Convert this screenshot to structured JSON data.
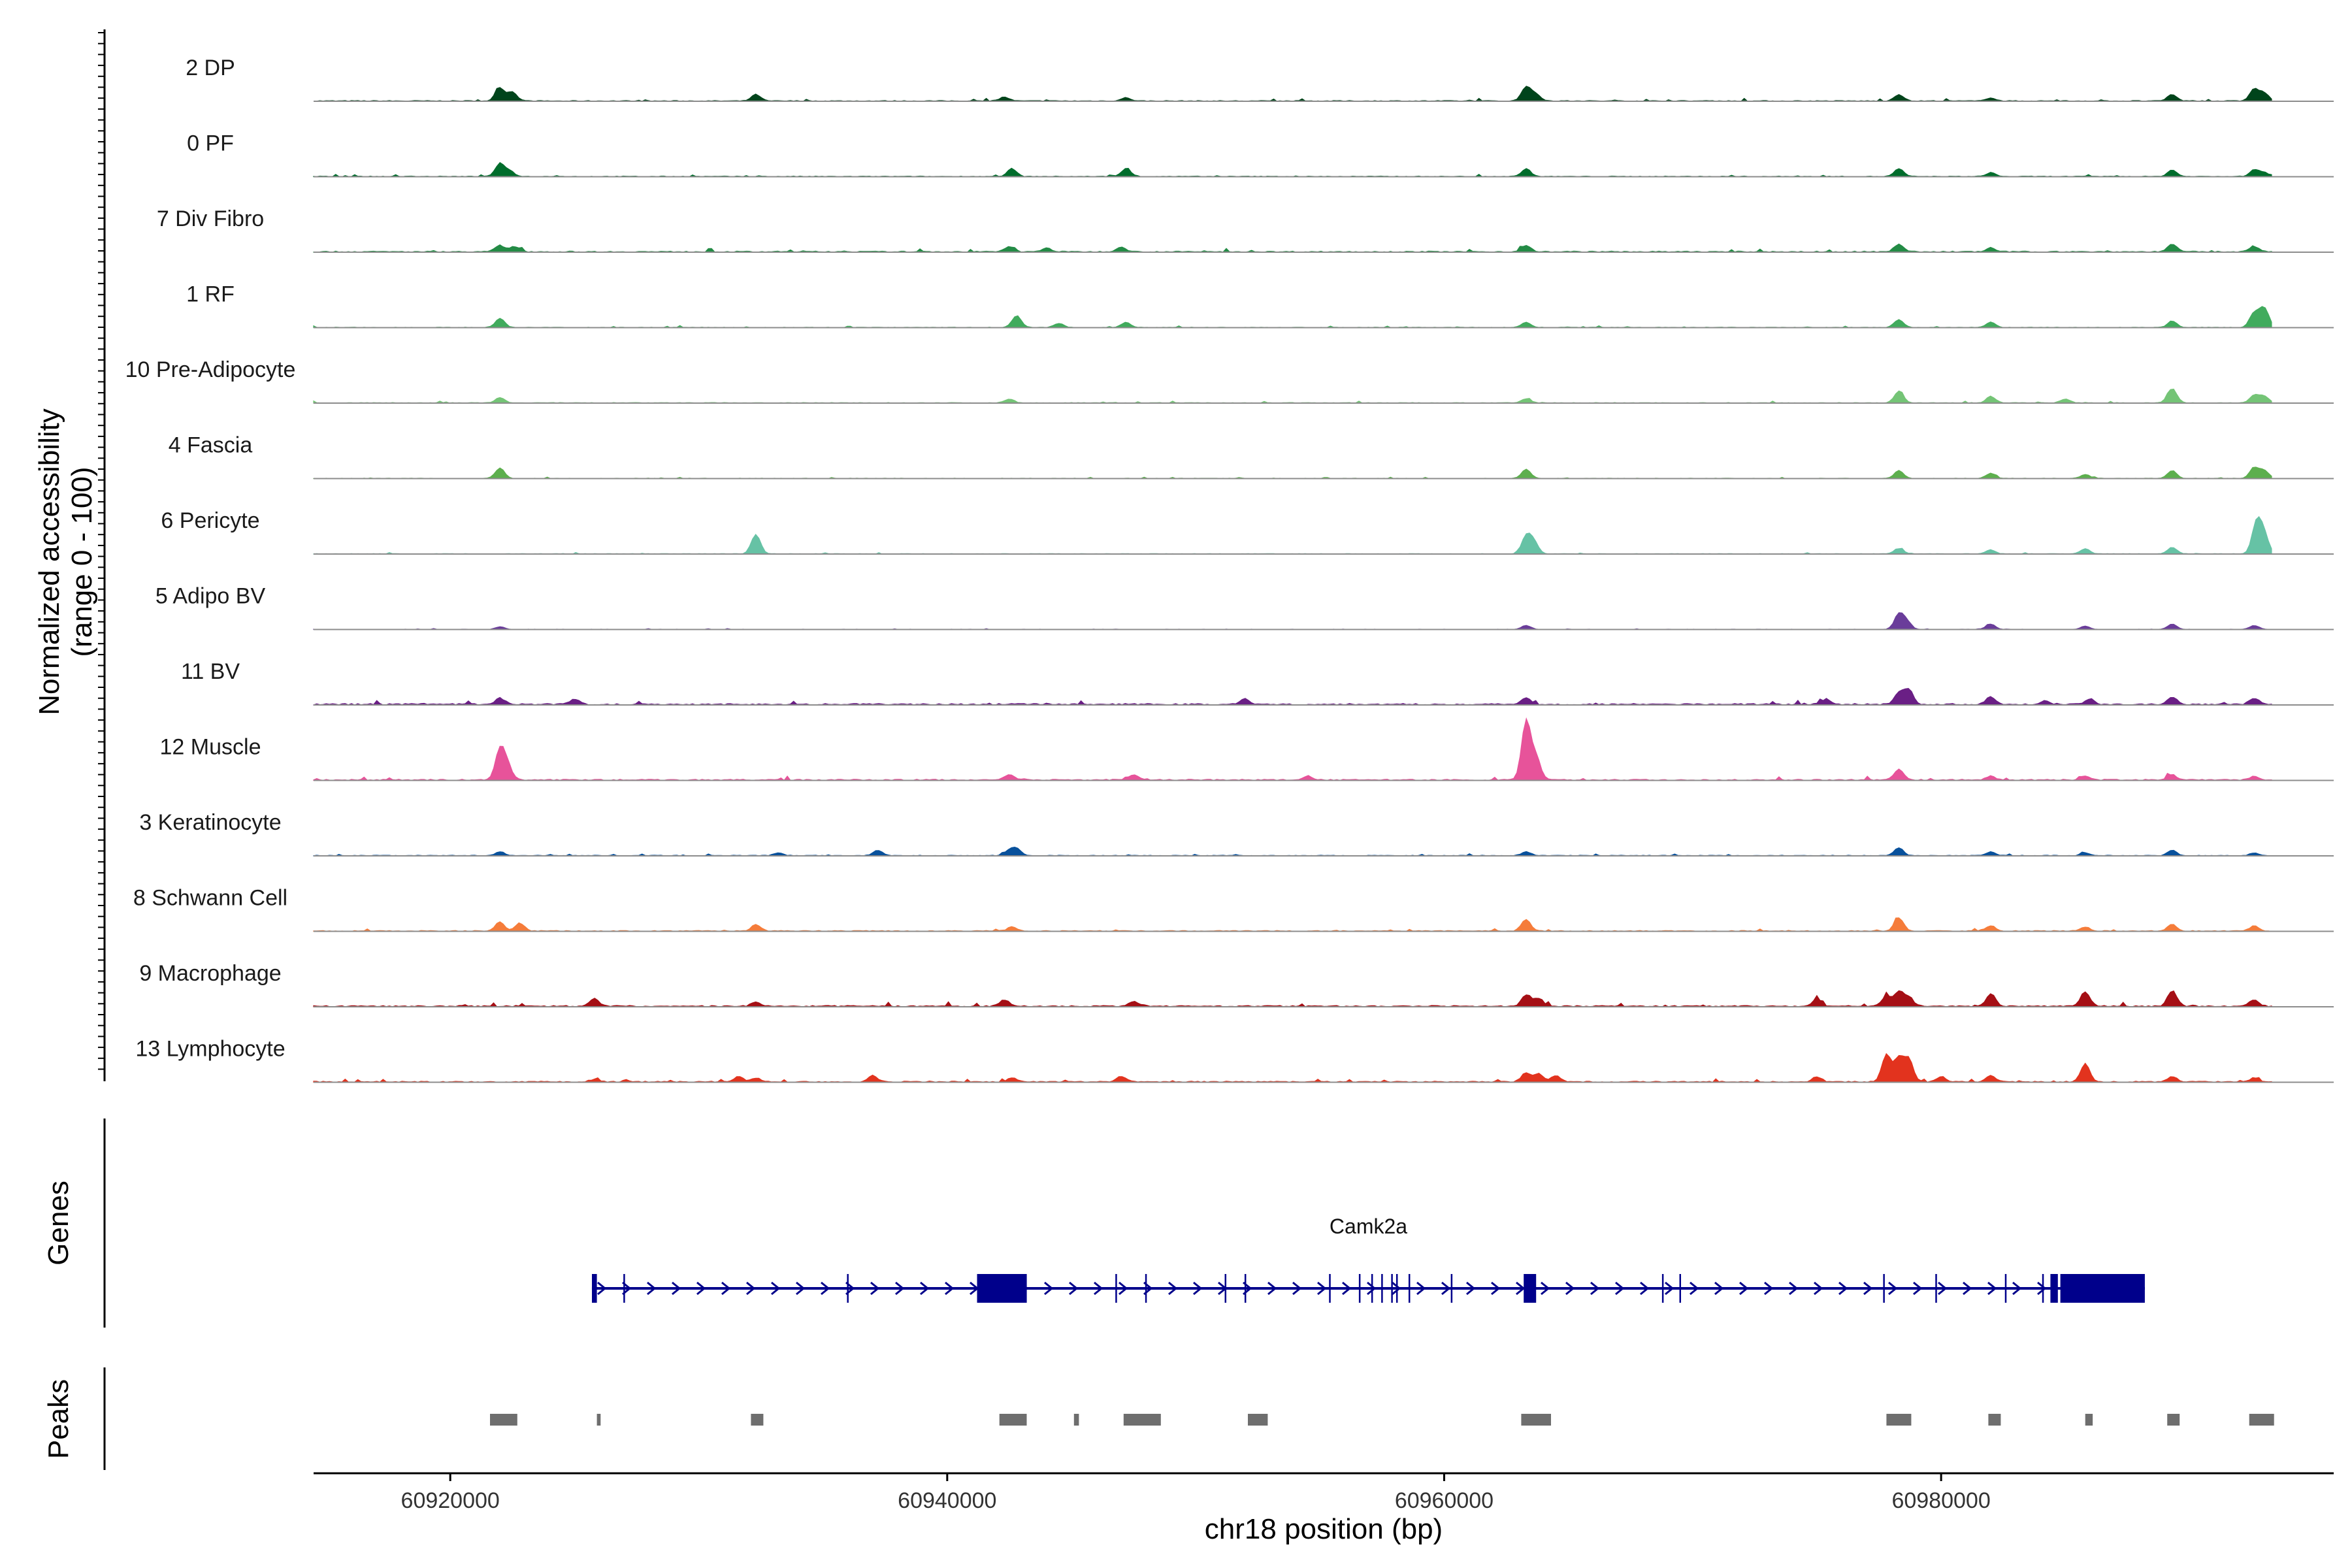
{
  "chart_data": {
    "type": "area",
    "title": "",
    "ylabel_line1": "Normalized accessibility",
    "ylabel_line2": "(range 0 - 100)",
    "xlabel": "chr18 position (bp)",
    "xlim": [
      60914500,
      60995800
    ],
    "ylim": [
      0,
      100
    ],
    "xticks": [
      {
        "value": 60920000,
        "label": "60920000"
      },
      {
        "value": 60940000,
        "label": "60940000"
      },
      {
        "value": 60960000,
        "label": "60960000"
      },
      {
        "value": 60980000,
        "label": "60980000"
      }
    ],
    "track_region": [
      60914500,
      60993300
    ],
    "tracks": [
      {
        "name": "2 DP",
        "color": "#00441B",
        "noise": 1.2,
        "peaks": [
          [
            60922000,
            20
          ],
          [
            60922500,
            14
          ],
          [
            60932300,
            10
          ],
          [
            60942300,
            6
          ],
          [
            60947200,
            5
          ],
          [
            60963300,
            22
          ],
          [
            60963700,
            10
          ],
          [
            60978300,
            10
          ],
          [
            60982000,
            5
          ],
          [
            60989300,
            10
          ],
          [
            60992600,
            18
          ],
          [
            60993000,
            12
          ]
        ]
      },
      {
        "name": "0 PF",
        "color": "#006D2C",
        "noise": 1.0,
        "peaks": [
          [
            60922000,
            20
          ],
          [
            60922400,
            8
          ],
          [
            60942600,
            12
          ],
          [
            60947200,
            12
          ],
          [
            60963300,
            12
          ],
          [
            60978300,
            12
          ],
          [
            60982000,
            6
          ],
          [
            60989300,
            10
          ],
          [
            60992600,
            10
          ],
          [
            60993000,
            6
          ]
        ]
      },
      {
        "name": "7 Div Fibro",
        "color": "#238B45",
        "noise": 1.6,
        "peaks": [
          [
            60922000,
            10
          ],
          [
            60922600,
            8
          ],
          [
            60942500,
            8
          ],
          [
            60944000,
            6
          ],
          [
            60947000,
            8
          ],
          [
            60963300,
            10
          ],
          [
            60978300,
            12
          ],
          [
            60982000,
            6
          ],
          [
            60989300,
            12
          ],
          [
            60992600,
            8
          ]
        ]
      },
      {
        "name": "1 RF",
        "color": "#41AB5D",
        "noise": 0.8,
        "peaks": [
          [
            60922000,
            14
          ],
          [
            60942800,
            18
          ],
          [
            60944500,
            6
          ],
          [
            60947200,
            8
          ],
          [
            60963300,
            8
          ],
          [
            60978300,
            12
          ],
          [
            60982000,
            8
          ],
          [
            60989300,
            10
          ],
          [
            60992600,
            22
          ],
          [
            60993000,
            30
          ]
        ]
      },
      {
        "name": "10 Pre-Adipocyte",
        "color": "#74C476",
        "noise": 0.9,
        "peaks": [
          [
            60922000,
            8
          ],
          [
            60942500,
            6
          ],
          [
            60963300,
            6
          ],
          [
            60978300,
            18
          ],
          [
            60982000,
            10
          ],
          [
            60985000,
            6
          ],
          [
            60989300,
            22
          ],
          [
            60992600,
            12
          ],
          [
            60993000,
            10
          ]
        ]
      },
      {
        "name": "4 Fascia",
        "color": "#5DAF4E",
        "noise": 0.6,
        "peaks": [
          [
            60922000,
            16
          ],
          [
            60963300,
            14
          ],
          [
            60978300,
            12
          ],
          [
            60982000,
            8
          ],
          [
            60985800,
            6
          ],
          [
            60989300,
            12
          ],
          [
            60992600,
            16
          ],
          [
            60993000,
            12
          ]
        ]
      },
      {
        "name": "6 Pericyte",
        "color": "#66C2A5",
        "noise": 0.7,
        "peaks": [
          [
            60932300,
            30
          ],
          [
            60963300,
            26
          ],
          [
            60963600,
            18
          ],
          [
            60978300,
            8
          ],
          [
            60982000,
            6
          ],
          [
            60985800,
            8
          ],
          [
            60989300,
            10
          ],
          [
            60992700,
            48
          ],
          [
            60993000,
            28
          ]
        ]
      },
      {
        "name": "5 Adipo BV",
        "color": "#6A3D9A",
        "noise": 0.5,
        "peaks": [
          [
            60922000,
            4
          ],
          [
            60963300,
            6
          ],
          [
            60978300,
            22
          ],
          [
            60978600,
            12
          ],
          [
            60982000,
            8
          ],
          [
            60985800,
            5
          ],
          [
            60989300,
            8
          ],
          [
            60992600,
            6
          ]
        ]
      },
      {
        "name": "11 BV",
        "color": "#6A1F85",
        "noise": 2.2,
        "peaks": [
          [
            60922000,
            10
          ],
          [
            60925000,
            8
          ],
          [
            60952000,
            8
          ],
          [
            60963300,
            10
          ],
          [
            60975400,
            8
          ],
          [
            60978300,
            18
          ],
          [
            60978700,
            22
          ],
          [
            60982000,
            12
          ],
          [
            60984200,
            6
          ],
          [
            60986000,
            8
          ],
          [
            60989300,
            12
          ],
          [
            60992600,
            10
          ]
        ]
      },
      {
        "name": "12 Muscle",
        "color": "#E7539A",
        "noise": 1.8,
        "peaks": [
          [
            60922000,
            46
          ],
          [
            60922300,
            22
          ],
          [
            60942500,
            8
          ],
          [
            60947500,
            8
          ],
          [
            60954500,
            6
          ],
          [
            60963300,
            90
          ],
          [
            60963700,
            34
          ],
          [
            60978300,
            16
          ],
          [
            60982000,
            6
          ],
          [
            60985800,
            6
          ],
          [
            60989300,
            8
          ],
          [
            60992600,
            6
          ]
        ]
      },
      {
        "name": "3 Keratinocyte",
        "color": "#08519C",
        "noise": 1.0,
        "peaks": [
          [
            60922000,
            6
          ],
          [
            60933200,
            4
          ],
          [
            60937200,
            8
          ],
          [
            60942500,
            8
          ],
          [
            60942800,
            10
          ],
          [
            60963300,
            6
          ],
          [
            60978300,
            12
          ],
          [
            60982000,
            6
          ],
          [
            60985800,
            4
          ],
          [
            60989300,
            8
          ],
          [
            60992600,
            4
          ]
        ]
      },
      {
        "name": "8 Schwann Cell",
        "color": "#F57C3A",
        "noise": 1.3,
        "peaks": [
          [
            60922000,
            14
          ],
          [
            60922800,
            12
          ],
          [
            60932300,
            10
          ],
          [
            60942600,
            6
          ],
          [
            60963300,
            18
          ],
          [
            60978300,
            20
          ],
          [
            60982000,
            8
          ],
          [
            60985800,
            6
          ],
          [
            60989300,
            10
          ],
          [
            60992600,
            8
          ]
        ]
      },
      {
        "name": "9 Macrophage",
        "color": "#A50F15",
        "noise": 2.0,
        "peaks": [
          [
            60925800,
            12
          ],
          [
            60932300,
            6
          ],
          [
            60942300,
            10
          ],
          [
            60947500,
            8
          ],
          [
            60963300,
            18
          ],
          [
            60963800,
            12
          ],
          [
            60975000,
            10
          ],
          [
            60977800,
            16
          ],
          [
            60978300,
            22
          ],
          [
            60978700,
            14
          ],
          [
            60982000,
            20
          ],
          [
            60985800,
            22
          ],
          [
            60989300,
            24
          ],
          [
            60992600,
            10
          ]
        ]
      },
      {
        "name": "13 Lymphocyte",
        "color": "#E2331E",
        "noise": 1.6,
        "peaks": [
          [
            60925800,
            4
          ],
          [
            60931600,
            8
          ],
          [
            60932300,
            6
          ],
          [
            60937000,
            10
          ],
          [
            60942600,
            6
          ],
          [
            60947000,
            8
          ],
          [
            60963300,
            14
          ],
          [
            60963800,
            12
          ],
          [
            60964500,
            10
          ],
          [
            60975000,
            8
          ],
          [
            60977800,
            42
          ],
          [
            60978300,
            36
          ],
          [
            60978700,
            34
          ],
          [
            60980000,
            8
          ],
          [
            60982000,
            10
          ],
          [
            60985800,
            28
          ],
          [
            60989300,
            8
          ],
          [
            60992600,
            6
          ]
        ]
      }
    ],
    "genes": [
      {
        "name": "Camk2a",
        "strand": "+",
        "start": 60925700,
        "end": 60988200,
        "exons": [
          [
            60925700,
            60925900
          ],
          [
            60941200,
            60943200
          ],
          [
            60963200,
            60963700
          ],
          [
            60984400,
            60984700
          ],
          [
            60984800,
            60988200
          ]
        ],
        "junctions": [
          60927000,
          60936000,
          60946800,
          60948000,
          60951200,
          60952000,
          60955400,
          60956600,
          60957100,
          60957500,
          60957900,
          60958100,
          60958600,
          60960300,
          60968800,
          60969500,
          60977700,
          60979800,
          60982600,
          60984100
        ]
      }
    ],
    "peaks_track": [
      [
        60921600,
        60922700
      ],
      [
        60925900,
        60926050
      ],
      [
        60932100,
        60932600
      ],
      [
        60942100,
        60943200
      ],
      [
        60945100,
        60945300
      ],
      [
        60947100,
        60948600
      ],
      [
        60952100,
        60952900
      ],
      [
        60963100,
        60964300
      ],
      [
        60977800,
        60978800
      ],
      [
        60981900,
        60982400
      ],
      [
        60985800,
        60986100
      ],
      [
        60989100,
        60989600
      ],
      [
        60992400,
        60993400
      ]
    ],
    "panel_labels": {
      "genes": "Genes",
      "peaks": "Peaks"
    }
  }
}
